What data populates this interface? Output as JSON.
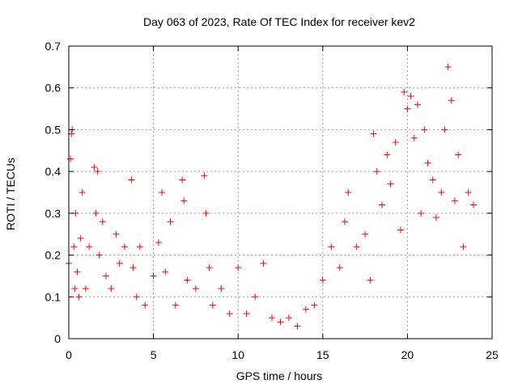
{
  "chart_data": {
    "type": "scatter",
    "title": "Day 063 of 2023, Rate Of TEC Index for receiver kev2",
    "xlabel": "GPS time / hours",
    "ylabel": "ROTI / TECUs",
    "xlim": [
      0,
      25
    ],
    "ylim": [
      0,
      0.7
    ],
    "xticks": [
      0,
      5,
      10,
      15,
      20,
      25
    ],
    "xtick_labels": [
      "0",
      "5",
      "10",
      "15",
      "20",
      "25"
    ],
    "yticks": [
      0,
      0.1,
      0.2,
      0.3,
      0.4,
      0.5,
      0.6,
      0.7
    ],
    "ytick_labels": [
      "0",
      "0.1",
      "0.2",
      "0.3",
      "0.4",
      "0.5",
      "0.6",
      "0.7"
    ],
    "grid": "dotted",
    "legend": "none",
    "marker": "plus",
    "color": "#ff0000",
    "series": [
      {
        "x": [
          0.0,
          0.1,
          0.15,
          0.2,
          0.3,
          0.35,
          0.4,
          0.5,
          0.6,
          0.7,
          0.8,
          1.0,
          1.2,
          1.5,
          1.6,
          1.7,
          1.8,
          2.0,
          2.2,
          2.5,
          2.8,
          3.0,
          3.3,
          3.7,
          3.8,
          4.0,
          4.2,
          4.5,
          5.0,
          5.3,
          5.5,
          5.7,
          6.0,
          6.3,
          6.7,
          6.8,
          7.0,
          7.5,
          8.0,
          8.1,
          8.3,
          8.5,
          9.0,
          9.5,
          10.0,
          10.5,
          11.0,
          11.5,
          12.0,
          12.5,
          13.0,
          13.5,
          14.0,
          14.5,
          15.0,
          15.5,
          16.0,
          16.3,
          16.5,
          17.0,
          17.5,
          17.8,
          18.0,
          18.2,
          18.5,
          18.8,
          19.0,
          19.3,
          19.6,
          19.8,
          20.0,
          20.2,
          20.4,
          20.6,
          20.8,
          21.0,
          21.2,
          21.5,
          21.7,
          22.0,
          22.2,
          22.4,
          22.6,
          22.8,
          23.0,
          23.3,
          23.6,
          23.9
        ],
        "y": [
          0.18,
          0.43,
          0.49,
          0.5,
          0.22,
          0.12,
          0.3,
          0.16,
          0.1,
          0.24,
          0.35,
          0.12,
          0.22,
          0.41,
          0.3,
          0.4,
          0.2,
          0.28,
          0.15,
          0.12,
          0.25,
          0.18,
          0.22,
          0.38,
          0.17,
          0.1,
          0.22,
          0.08,
          0.15,
          0.23,
          0.35,
          0.16,
          0.28,
          0.08,
          0.38,
          0.33,
          0.14,
          0.12,
          0.39,
          0.3,
          0.17,
          0.08,
          0.12,
          0.06,
          0.17,
          0.06,
          0.1,
          0.18,
          0.05,
          0.04,
          0.05,
          0.03,
          0.07,
          0.08,
          0.14,
          0.22,
          0.17,
          0.28,
          0.35,
          0.22,
          0.25,
          0.14,
          0.49,
          0.4,
          0.32,
          0.44,
          0.37,
          0.47,
          0.26,
          0.59,
          0.55,
          0.58,
          0.48,
          0.56,
          0.3,
          0.5,
          0.42,
          0.38,
          0.29,
          0.35,
          0.5,
          0.65,
          0.57,
          0.33,
          0.44,
          0.22,
          0.35,
          0.32
        ]
      }
    ]
  }
}
